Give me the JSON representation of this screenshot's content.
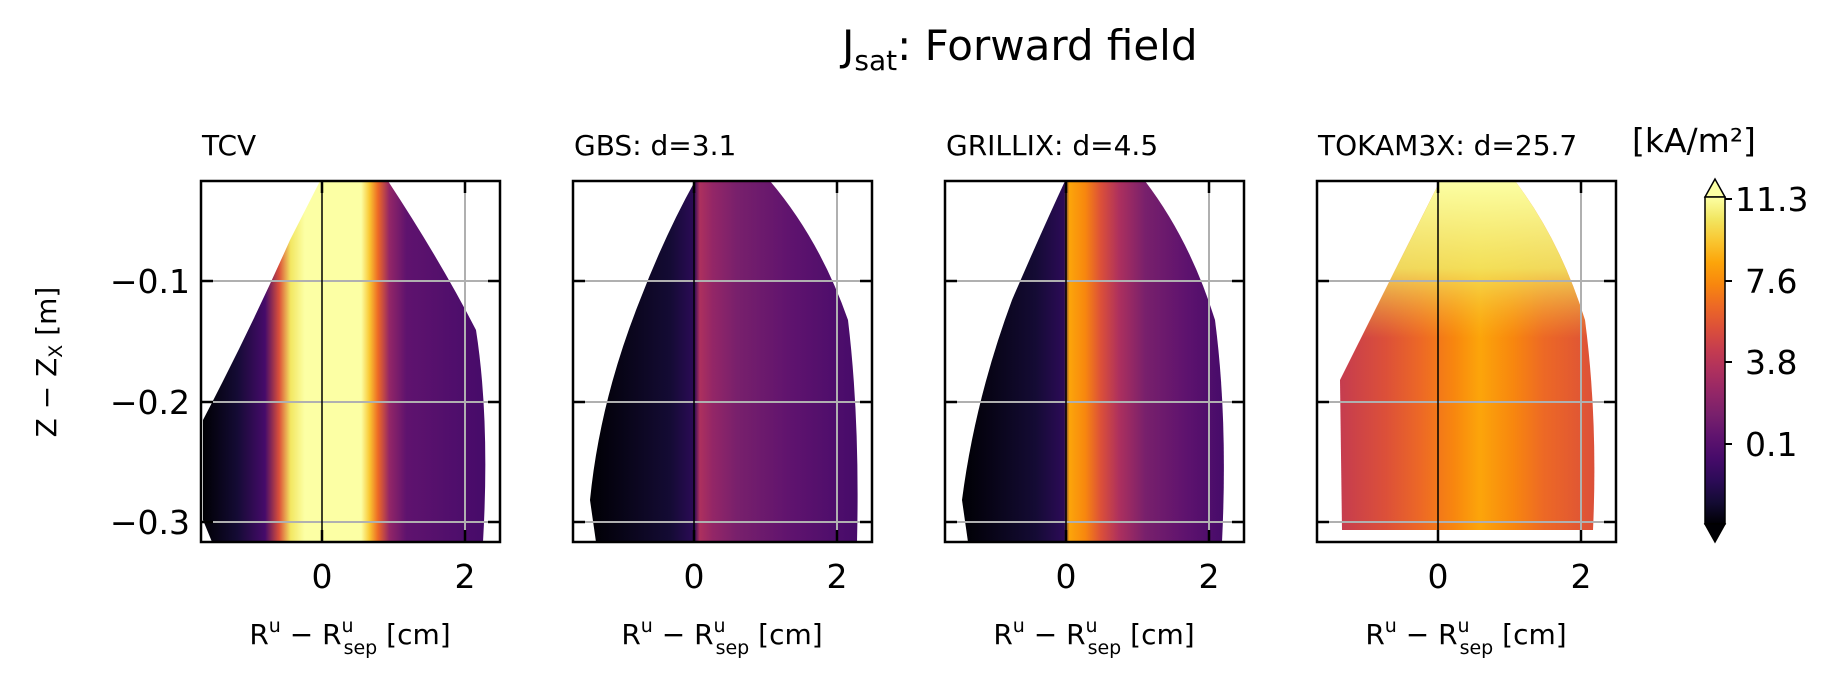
{
  "figure": {
    "title_main": "J",
    "title_sub": "sat",
    "title_rest": ": Forward field"
  },
  "panels": [
    {
      "title": "TCV"
    },
    {
      "title": "GBS: d=3.1"
    },
    {
      "title": "GRILLIX: d=4.5"
    },
    {
      "title": "TOKAM3X: d=25.7"
    }
  ],
  "xlabel": {
    "main": "R",
    "sup1": "u",
    "minus": " − R",
    "sup2": "u",
    "sub2": "sep",
    "unit": " [cm]"
  },
  "ylabel": {
    "main": "Z − Z",
    "sub": "X",
    "unit": " [m]"
  },
  "colorbar": {
    "label": "[kA/m²]",
    "tick_labels": [
      "11.3",
      "7.6",
      "3.8",
      "0.1"
    ],
    "colors": [
      "#000004",
      "#140b34",
      "#2c0b57",
      "#460b6a",
      "#5f136e",
      "#78206c",
      "#932667",
      "#ad305e",
      "#c53c4f",
      "#dc5039",
      "#ed6925",
      "#f8870e",
      "#fca50a",
      "#f9c732",
      "#f2e661",
      "#fcffa4"
    ],
    "extend": "both"
  },
  "chart_data": [
    {
      "type": "heatmap",
      "panel": "TCV",
      "xlim": [
        -1.7,
        2.5
      ],
      "ylim": [
        -0.315,
        -0.015
      ],
      "xticks": [
        0,
        2
      ],
      "xtick_labels": [
        "0",
        "2"
      ],
      "yticks": [
        -0.1,
        -0.2,
        -0.3
      ],
      "ytick_labels": [
        "−0.1",
        "−0.2",
        "−0.3"
      ],
      "grid": true,
      "profile_x": [
        -1.5,
        -1.0,
        -0.5,
        0.0,
        0.5,
        1.0,
        1.5,
        2.0,
        2.3
      ],
      "profile_Jsat": [
        0.05,
        0.2,
        6.0,
        11.3,
        11.3,
        5.0,
        1.5,
        0.6,
        0.3
      ]
    },
    {
      "type": "heatmap",
      "panel": "GBS: d=3.1",
      "xlim": [
        -1.7,
        2.5
      ],
      "ylim": [
        -0.315,
        -0.015
      ],
      "xticks": [
        0,
        2
      ],
      "xtick_labels": [
        "0",
        "2"
      ],
      "grid": true,
      "profile_x": [
        -1.5,
        -1.0,
        -0.5,
        0.0,
        0.5,
        1.0,
        1.5,
        2.0,
        2.3
      ],
      "profile_Jsat": [
        0.01,
        0.05,
        0.15,
        3.0,
        2.0,
        1.5,
        1.0,
        0.7,
        0.5
      ]
    },
    {
      "type": "heatmap",
      "panel": "GRILLIX: d=4.5",
      "xlim": [
        -1.7,
        2.5
      ],
      "ylim": [
        -0.315,
        -0.015
      ],
      "xticks": [
        0,
        2
      ],
      "xtick_labels": [
        "0",
        "2"
      ],
      "grid": true,
      "profile_x": [
        -1.5,
        -1.0,
        -0.5,
        0.0,
        0.5,
        1.0,
        1.5,
        2.0,
        2.3
      ],
      "profile_Jsat": [
        0.01,
        0.05,
        0.2,
        9.0,
        6.0,
        3.5,
        1.5,
        0.7,
        0.4
      ]
    },
    {
      "type": "heatmap",
      "panel": "TOKAM3X: d=25.7",
      "xlim": [
        -1.7,
        2.5
      ],
      "ylim": [
        -0.315,
        -0.015
      ],
      "xticks": [
        0,
        2
      ],
      "xtick_labels": [
        "0",
        "2"
      ],
      "grid": true,
      "profile_x": [
        -1.5,
        -1.0,
        -0.5,
        0.0,
        0.5,
        1.0,
        1.5,
        2.0,
        2.3
      ],
      "profile_Jsat": [
        4.5,
        5.0,
        6.0,
        7.5,
        8.5,
        8.0,
        6.5,
        5.0,
        4.5
      ]
    }
  ]
}
